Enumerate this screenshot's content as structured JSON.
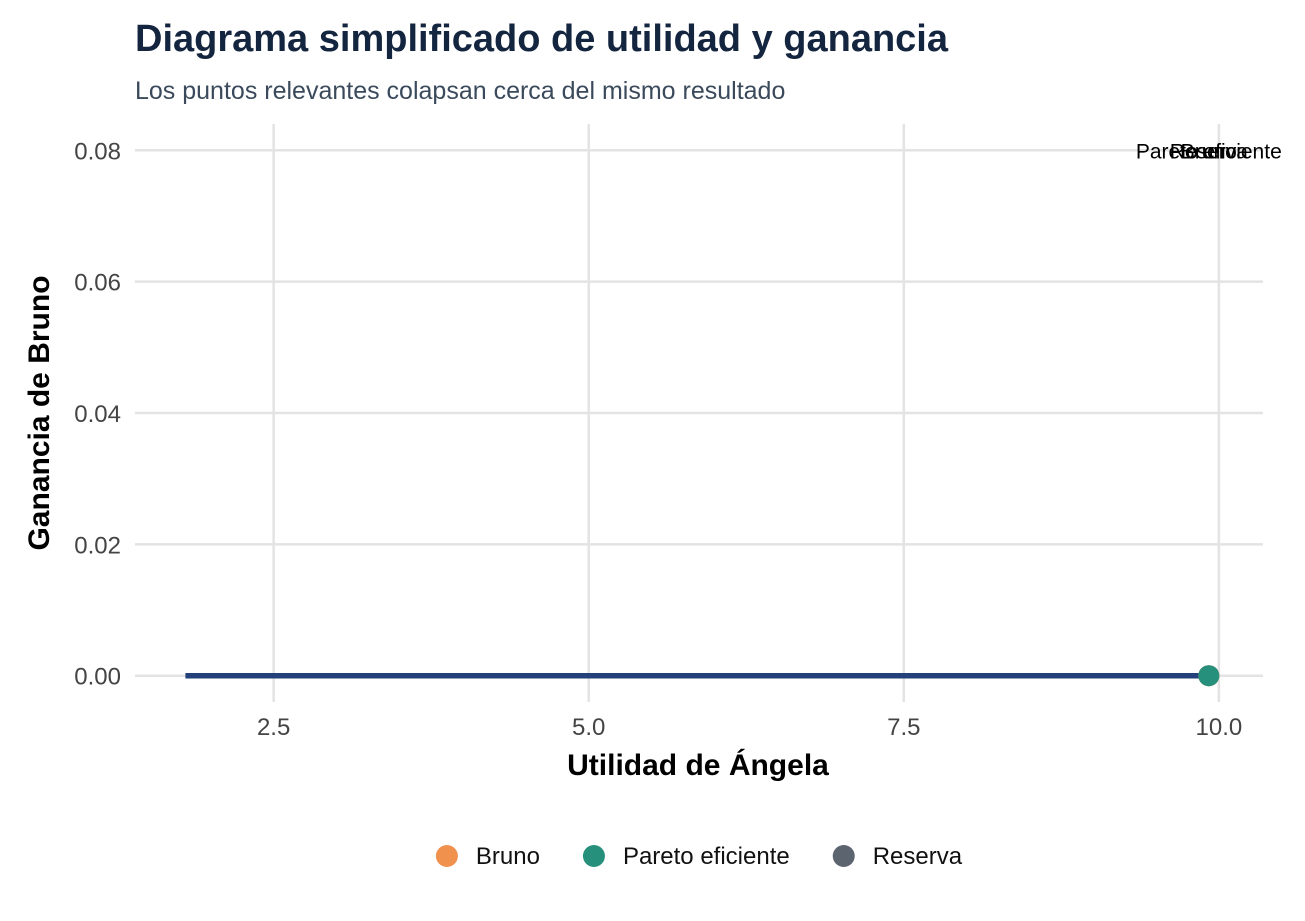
{
  "chart_data": {
    "type": "line",
    "title": "Diagrama simplificado de utilidad y ganancia",
    "subtitle": "Los puntos relevantes colapsan cerca del mismo resultado",
    "xlabel": "Utilidad de Ángela",
    "ylabel": "Ganancia de Bruno",
    "xlim": [
      1.4,
      10.35
    ],
    "ylim": [
      -0.004,
      0.084
    ],
    "x_ticks": [
      2.5,
      5.0,
      7.5,
      10.0
    ],
    "x_tick_labels": [
      "2.5",
      "5.0",
      "7.5",
      "10.0"
    ],
    "y_ticks": [
      0.0,
      0.02,
      0.04,
      0.06,
      0.08
    ],
    "y_tick_labels": [
      "0.00",
      "0.02",
      "0.04",
      "0.06",
      "0.08"
    ],
    "grid": true,
    "legend_position": "bottom",
    "line": {
      "x": [
        1.8,
        9.92
      ],
      "y": [
        0,
        0
      ],
      "color": "#22407a"
    },
    "points": [
      {
        "category": "Reserva",
        "x": 9.92,
        "y": 0,
        "color": "#5c6470"
      },
      {
        "category": "Bruno",
        "x": 9.92,
        "y": 0,
        "color": "#f0914e"
      },
      {
        "category": "Pareto eficiente",
        "x": 9.92,
        "y": 0,
        "color": "#26907c"
      }
    ],
    "annotations": [
      {
        "text": "Pareto eficiente",
        "x": 9.92,
        "y": 0.08
      },
      {
        "text": "Bruno",
        "x": 9.92,
        "y": 0.08
      },
      {
        "text": "Reserva",
        "x": 9.92,
        "y": 0.08
      }
    ],
    "legend": [
      {
        "label": "Bruno",
        "color": "#f0914e"
      },
      {
        "label": "Pareto eficiente",
        "color": "#26907c"
      },
      {
        "label": "Reserva",
        "color": "#5c6470"
      }
    ]
  }
}
